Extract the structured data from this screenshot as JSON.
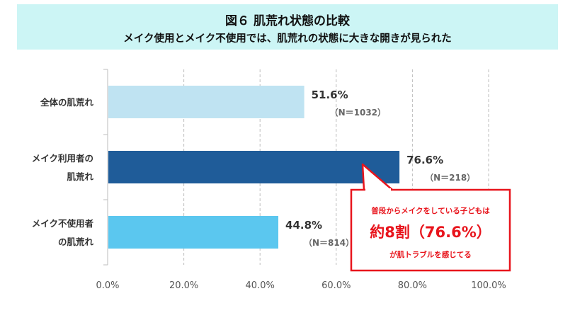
{
  "header": {
    "title": "図６ 肌荒れ状態の比較",
    "subtitle": "メイク使用とメイク不使用では、肌荒れの状態に大きな開きが見られた"
  },
  "chart_data": {
    "type": "bar",
    "orientation": "horizontal",
    "categories": [
      [
        "全体の肌荒れ"
      ],
      [
        "メイク利用者の",
        "肌荒れ"
      ],
      [
        "メイク不使用者",
        "の肌荒れ"
      ]
    ],
    "values": [
      51.6,
      76.6,
      44.8
    ],
    "value_labels": [
      "51.6%",
      "76.6%",
      "44.8%"
    ],
    "n_labels": [
      "（N＝1032）",
      "（N＝218）",
      "（N＝814）"
    ],
    "bar_colors": [
      "#bfe3f2",
      "#1f5c99",
      "#5bc7ef"
    ],
    "xlim": [
      0,
      100
    ],
    "xticks": [
      "0.0%",
      "20.0%",
      "40.0%",
      "60.0%",
      "80.0%",
      "100.0%"
    ],
    "grid": true,
    "gridline_style": "dashed"
  },
  "callout": {
    "line1": "普段からメイクをしている子どもは",
    "line2": "約8割（76.6%）",
    "line3": "が肌トラブルを感じてる",
    "color": "#e8141c"
  }
}
